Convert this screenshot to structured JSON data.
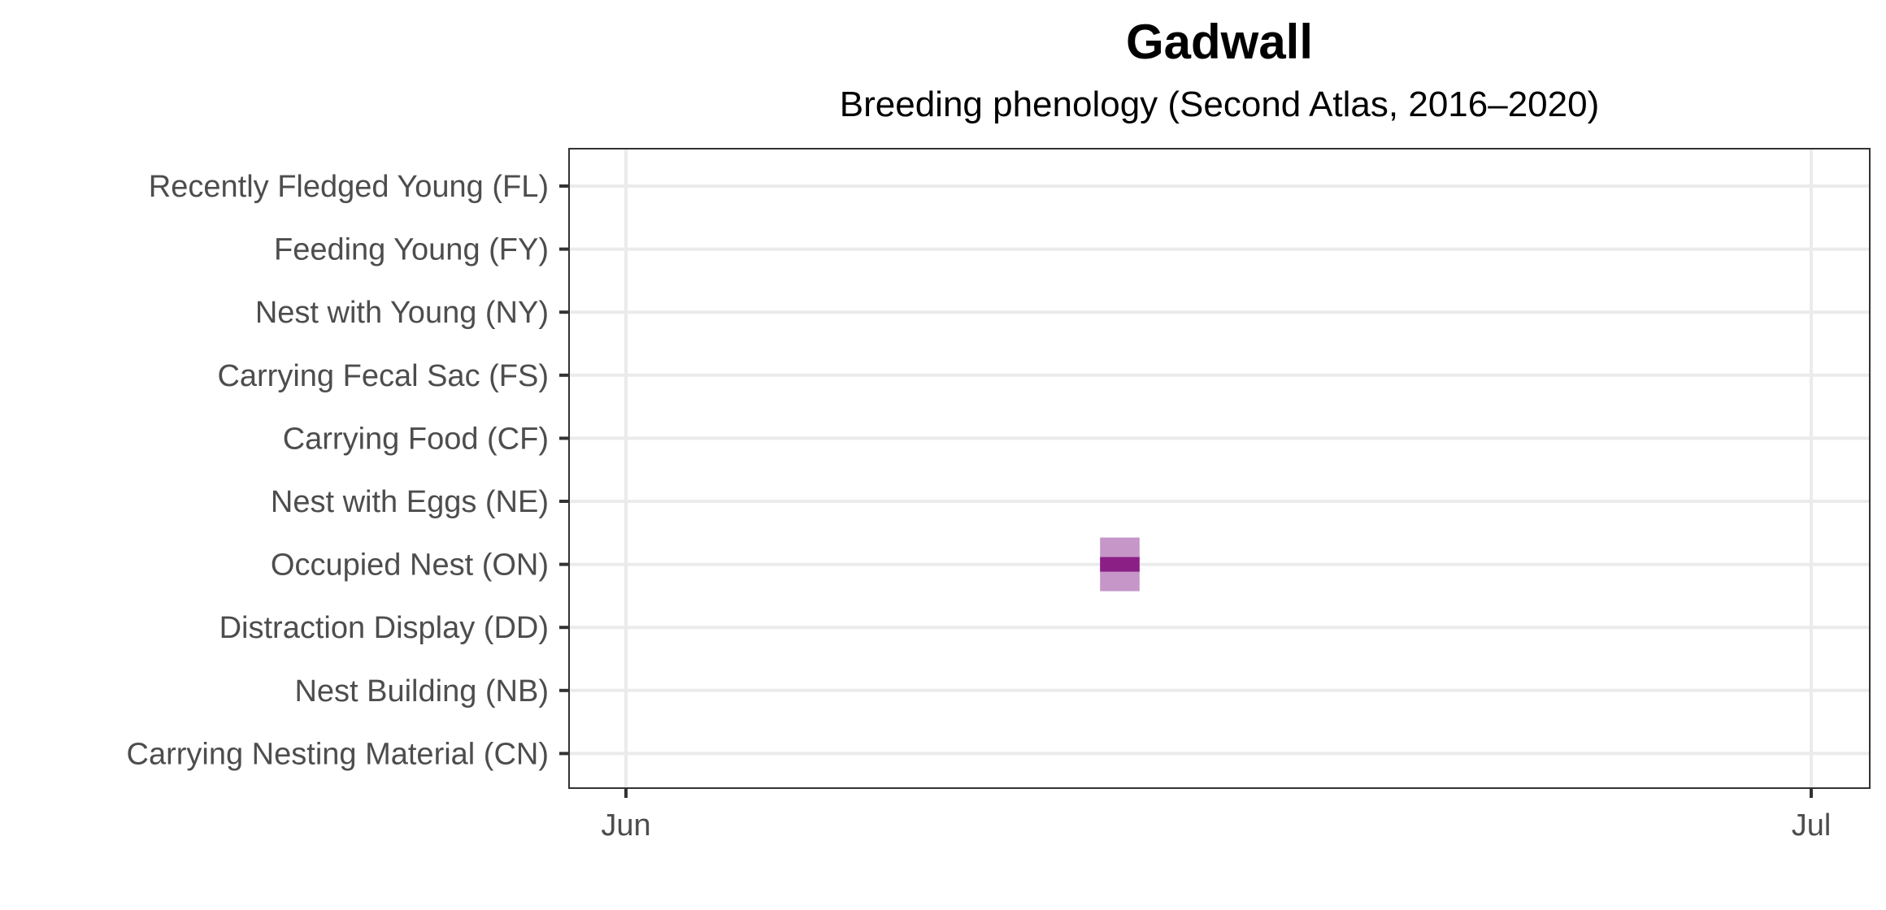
{
  "chart_data": {
    "type": "heatmap",
    "title": "Gadwall",
    "subtitle": "Breeding phenology (Second Atlas, 2016–2020)",
    "xlabel": "",
    "ylabel": "",
    "x_axis": {
      "type": "date",
      "range": [
        "2020-06-01",
        "2020-07-01"
      ],
      "ticks": [
        "2020-06-01",
        "2020-07-01"
      ],
      "tick_labels": [
        "Jun",
        "Jul"
      ]
    },
    "categories": [
      "Recently Fledged Young (FL)",
      "Feeding Young (FY)",
      "Nest with Young (NY)",
      "Carrying Fecal Sac (FS)",
      "Carrying Food (CF)",
      "Nest with Eggs (NE)",
      "Occupied Nest (ON)",
      "Distraction Display (DD)",
      "Nest Building (NB)",
      "Carrying Nesting Material (CN)"
    ],
    "observations": [
      {
        "category": "Occupied Nest (ON)",
        "start": "2020-06-13",
        "end": "2020-06-14",
        "inner_start": "2020-06-13",
        "inner_end": "2020-06-14"
      }
    ],
    "grid": true,
    "legend": "none",
    "colors": {
      "outer": "#c696c8",
      "inner": "#8b1f86",
      "grid": "#ebebeb",
      "panel_border": "#333333",
      "tick": "#333333"
    }
  }
}
